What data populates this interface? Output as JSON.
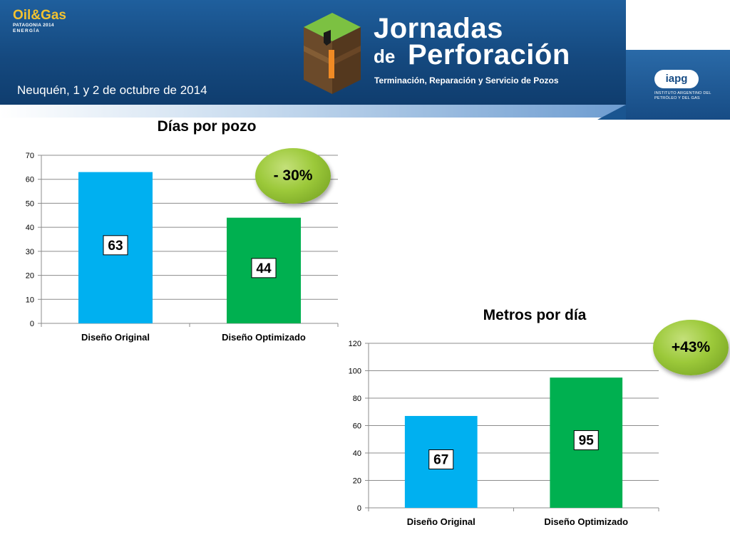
{
  "header": {
    "event_logo": {
      "main": "Oil&Gas",
      "line1": "PATAGONIA 2014",
      "line2": "ENERGÍA"
    },
    "title_line1": "Jornadas",
    "title_de": "de",
    "title_line2": "Perforación",
    "subtitle": "Terminación, Reparación y Servicio de Pozos",
    "place_date": "Neuquén,  1 y 2 de octubre de 2014",
    "org_logo": "iapg",
    "org_name": "INSTITUTO ARGENTINO DEL PETRÓLEO Y DEL GAS",
    "colors": {
      "banner": "#15497f",
      "cube_green": "#7cc142",
      "cube_brown": "#6b4a2a",
      "cube_orange": "#f08a24"
    }
  },
  "chart_data": [
    {
      "type": "bar",
      "title": "Días por pozo",
      "categories": [
        "Diseño Original",
        "Diseño Optimizado"
      ],
      "values": [
        63,
        44
      ],
      "data_labels": [
        "63",
        "44"
      ],
      "ylim": [
        0,
        70
      ],
      "yticks": [
        0,
        10,
        20,
        30,
        40,
        50,
        60,
        70
      ],
      "grid": true,
      "legend": "none",
      "colors": [
        "#00b0f0",
        "#00b050"
      ],
      "badge": "- 30%"
    },
    {
      "type": "bar",
      "title": "Metros por día",
      "categories": [
        "Diseño Original",
        "Diseño Optimizado"
      ],
      "values": [
        67,
        95
      ],
      "data_labels": [
        "67",
        "95"
      ],
      "ylim": [
        0,
        120
      ],
      "yticks": [
        0,
        20,
        40,
        60,
        80,
        100,
        120
      ],
      "grid": true,
      "legend": "none",
      "colors": [
        "#00b0f0",
        "#00b050"
      ],
      "badge": "+43%"
    }
  ]
}
